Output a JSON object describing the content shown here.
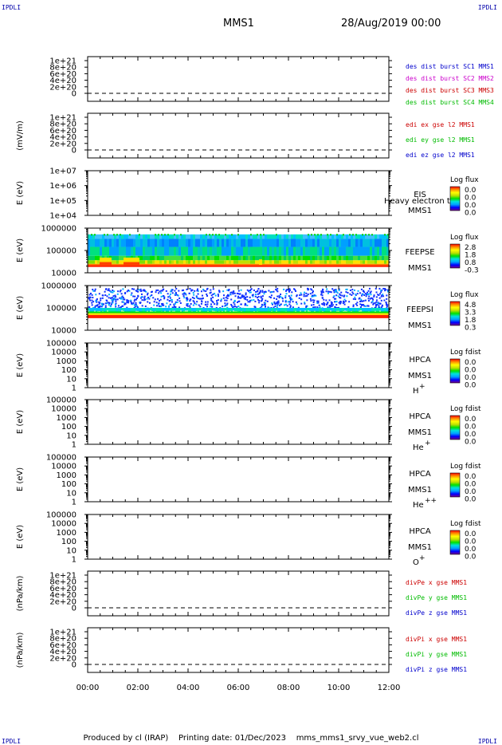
{
  "header": {
    "corner_left_top": "IPDLI",
    "corner_right_top": "IPDLI",
    "corner_left_bottom": "IPDLI",
    "corner_right_bottom": "IPDLI",
    "spacecraft": "MMS1",
    "datetime": "28/Aug/2019 00:00"
  },
  "footer": {
    "text": "Produced by cl (IRAP)    Printing date: 01/Dec/2023    mms_mms1_srvy_vue_web2.cl"
  },
  "chart_data": {
    "type": "multi-panel",
    "x_ticks": [
      "00:00",
      "02:00",
      "04:00",
      "06:00",
      "08:00",
      "10:00",
      "12:00"
    ],
    "panels": [
      {
        "kind": "line",
        "ylabel": "",
        "ticks": [
          "1e+21",
          "8e+20",
          "6e+20",
          "4e+20",
          "2e+20",
          "0"
        ],
        "legend": [
          {
            "text": "des dist burst SC1 MMS1",
            "color": "#0000cc"
          },
          {
            "text": "des dist burst SC2 MMS2",
            "color": "#cc00cc"
          },
          {
            "text": "des dist burst SC3 MMS3",
            "color": "#cc0000"
          },
          {
            "text": "des dist burst SC4 MMS4",
            "color": "#00bb00"
          }
        ]
      },
      {
        "kind": "line",
        "ylabel": "(mV/m)",
        "ticks": [
          "1e+21",
          "8e+20",
          "6e+20",
          "4e+20",
          "2e+20",
          "0"
        ],
        "legend": [
          {
            "text": "edi ex gse l2 MMS1",
            "color": "#cc0000"
          },
          {
            "text": "edi ey gse l2 MMS1",
            "color": "#00bb00"
          },
          {
            "text": "edi ez gse l2 MMS1",
            "color": "#0000cc"
          }
        ]
      },
      {
        "kind": "spec",
        "ylabel": "E (eV)",
        "ticks": [
          "1e+07",
          "1e+06",
          "1e+05",
          "1e+04"
        ],
        "side": [
          "EIS",
          "MMS1"
        ],
        "overlay": "Heavy electron to",
        "cb_title": "Log flux",
        "cb_ticks": [
          "0.0",
          "0.0",
          "0.0",
          "0.0"
        ],
        "data": "none"
      },
      {
        "kind": "spec",
        "ylabel": "E (eV)",
        "ticks": [
          "1000000",
          "100000",
          "10000"
        ],
        "side": [
          "FEEPSE",
          "MMS1"
        ],
        "cb_title": "Log flux",
        "cb_ticks": [
          "2.8",
          "1.8",
          "0.8",
          "-0.3"
        ],
        "data": "feepse"
      },
      {
        "kind": "spec",
        "ylabel": "E (eV)",
        "ticks": [
          "1000000",
          "100000",
          "10000"
        ],
        "side": [
          "FEEPSI",
          "MMS1"
        ],
        "cb_title": "Log flux",
        "cb_ticks": [
          "4.8",
          "3.3",
          "1.8",
          "0.3"
        ],
        "data": "feepsi"
      },
      {
        "kind": "spec",
        "ylabel": "E (eV)",
        "ticks": [
          "100000",
          "10000",
          "1000",
          "100",
          "10",
          "1"
        ],
        "side": [
          "HPCA",
          "MMS1"
        ],
        "species": "H",
        "charge": "+",
        "cb_title": "Log fdist",
        "cb_ticks": [
          "0.0",
          "0.0",
          "0.0",
          "0.0"
        ],
        "data": "none"
      },
      {
        "kind": "spec",
        "ylabel": "E (eV)",
        "ticks": [
          "100000",
          "10000",
          "1000",
          "100",
          "10",
          "1"
        ],
        "side": [
          "HPCA",
          "MMS1"
        ],
        "species": "He",
        "charge": "+",
        "cb_title": "Log fdist",
        "cb_ticks": [
          "0.0",
          "0.0",
          "0.0",
          "0.0"
        ],
        "data": "none"
      },
      {
        "kind": "spec",
        "ylabel": "E (eV)",
        "ticks": [
          "100000",
          "10000",
          "1000",
          "100",
          "10",
          "1"
        ],
        "side": [
          "HPCA",
          "MMS1"
        ],
        "species": "He",
        "charge": "++",
        "cb_title": "Log fdist",
        "cb_ticks": [
          "0.0",
          "0.0",
          "0.0",
          "0.0"
        ],
        "data": "none"
      },
      {
        "kind": "spec",
        "ylabel": "E (eV)",
        "ticks": [
          "100000",
          "10000",
          "1000",
          "100",
          "10",
          "1"
        ],
        "side": [
          "HPCA",
          "MMS1"
        ],
        "species": "O",
        "charge": "+",
        "cb_title": "Log fdist",
        "cb_ticks": [
          "0.0",
          "0.0",
          "0.0",
          "0.0"
        ],
        "data": "none"
      },
      {
        "kind": "line",
        "ylabel": "(nPa/km)",
        "ticks": [
          "1e+21",
          "8e+20",
          "6e+20",
          "4e+20",
          "2e+20",
          "0"
        ],
        "legend": [
          {
            "text": "divPe x gse MMS1",
            "color": "#cc0000"
          },
          {
            "text": "divPe y gse MMS1",
            "color": "#00bb00"
          },
          {
            "text": "divPe z gse MMS1",
            "color": "#0000cc"
          }
        ]
      },
      {
        "kind": "line",
        "ylabel": "(nPa/km)",
        "ticks": [
          "1e+21",
          "8e+20",
          "6e+20",
          "4e+20",
          "2e+20",
          "0"
        ],
        "legend": [
          {
            "text": "divPi x gse MMS1",
            "color": "#cc0000"
          },
          {
            "text": "divPi y gse MMS1",
            "color": "#00bb00"
          },
          {
            "text": "divPi z gse MMS1",
            "color": "#0000cc"
          }
        ]
      }
    ]
  }
}
